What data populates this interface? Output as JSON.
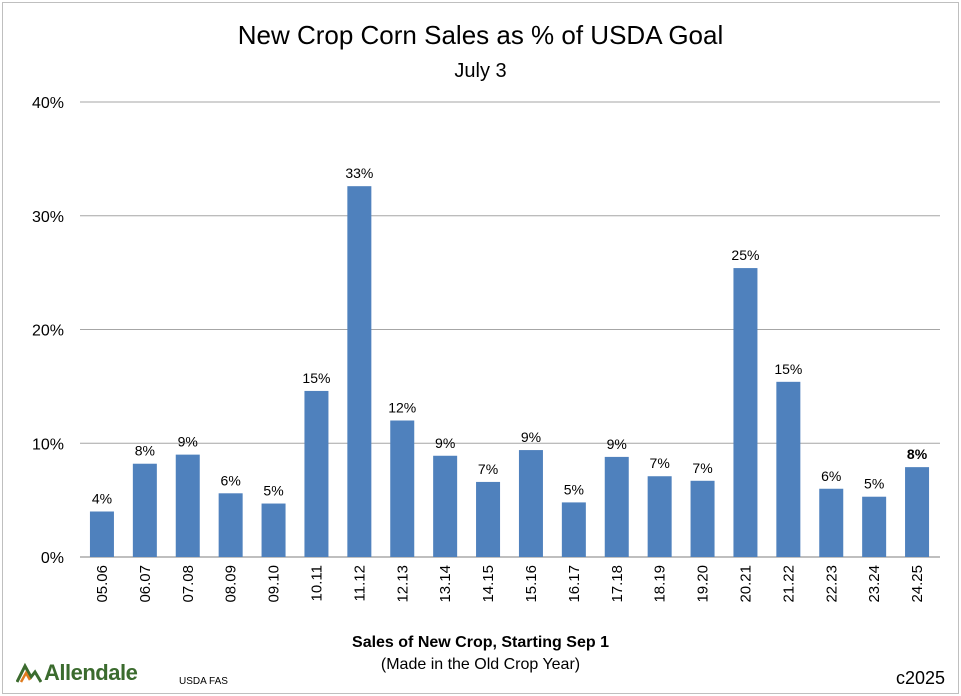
{
  "chart_data": {
    "type": "bar",
    "title": "New Crop Corn Sales as % of USDA Goal",
    "subtitle": "July 3",
    "xlabel": "Sales of New Crop, Starting Sep 1",
    "xlabel_sub": "(Made in the Old Crop Year)",
    "ylabel": "",
    "ylim": [
      0,
      40
    ],
    "yticks": [
      0,
      10,
      20,
      30,
      40
    ],
    "ytick_labels": [
      "0%",
      "10%",
      "20%",
      "30%",
      "40%"
    ],
    "categories": [
      "05.06",
      "06.07",
      "07.08",
      "08.09",
      "09.10",
      "10.11",
      "11.12",
      "12.13",
      "13.14",
      "14.15",
      "15.16",
      "16.17",
      "17.18",
      "18.19",
      "19.20",
      "20.21",
      "21.22",
      "22.23",
      "23.24",
      "24.25"
    ],
    "values": [
      4.0,
      8.2,
      9.0,
      5.6,
      4.7,
      14.6,
      32.6,
      12.0,
      8.9,
      6.6,
      9.4,
      4.8,
      8.8,
      7.1,
      6.7,
      25.4,
      15.4,
      6.0,
      5.3,
      7.9
    ],
    "data_labels": [
      "4%",
      "8%",
      "9%",
      "6%",
      "5%",
      "15%",
      "33%",
      "12%",
      "9%",
      "7%",
      "9%",
      "5%",
      "9%",
      "7%",
      "7%",
      "25%",
      "15%",
      "6%",
      "5%",
      "8%"
    ],
    "bold_label_index": 19,
    "bar_color": "#4f81bd",
    "grid": true
  },
  "footer": {
    "logo_text": "Allendale",
    "source": "USDA FAS",
    "copyright": "c2025"
  },
  "colors": {
    "logo_green": "#3b6b2e",
    "logo_orange": "#e07b1f",
    "grid": "#a6a6a6"
  }
}
